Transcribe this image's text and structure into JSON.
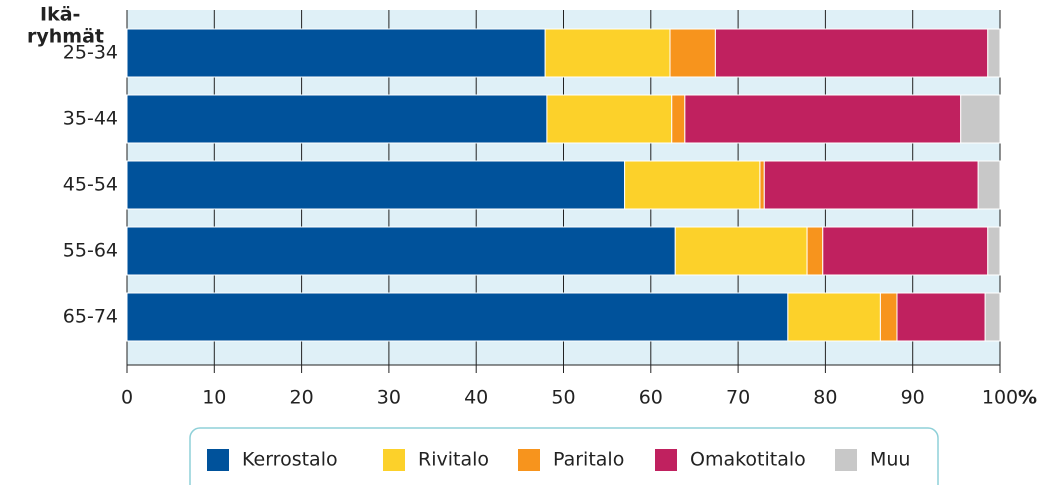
{
  "chart_data": {
    "type": "stacked_bar_horizontal",
    "y_label": [
      "Ikä-",
      "ryhmät"
    ],
    "x_label": "%",
    "categories": [
      "25-34",
      "35-44",
      "45-54",
      "55-64",
      "65-74"
    ],
    "series": [
      {
        "name": "Kerrostalo",
        "color": "#00529b",
        "values": [
          47.9,
          48.1,
          57.0,
          62.8,
          75.7
        ]
      },
      {
        "name": "Rivitalo",
        "color": "#fcd12a",
        "values": [
          14.3,
          14.3,
          15.5,
          15.1,
          10.6
        ]
      },
      {
        "name": "Paritalo",
        "color": "#f7941d",
        "values": [
          5.2,
          1.5,
          0.5,
          1.8,
          1.9
        ]
      },
      {
        "name": "Omakotitalo",
        "color": "#c0215f",
        "values": [
          31.2,
          31.6,
          24.5,
          18.9,
          10.1
        ]
      },
      {
        "name": "Muu",
        "color": "#c8c8c8",
        "values": [
          1.4,
          4.5,
          2.5,
          1.4,
          1.7
        ]
      }
    ],
    "xlim": [
      0,
      100
    ],
    "xticks": [
      0,
      10,
      20,
      30,
      40,
      50,
      60,
      70,
      80,
      90,
      100
    ],
    "grid": true
  }
}
